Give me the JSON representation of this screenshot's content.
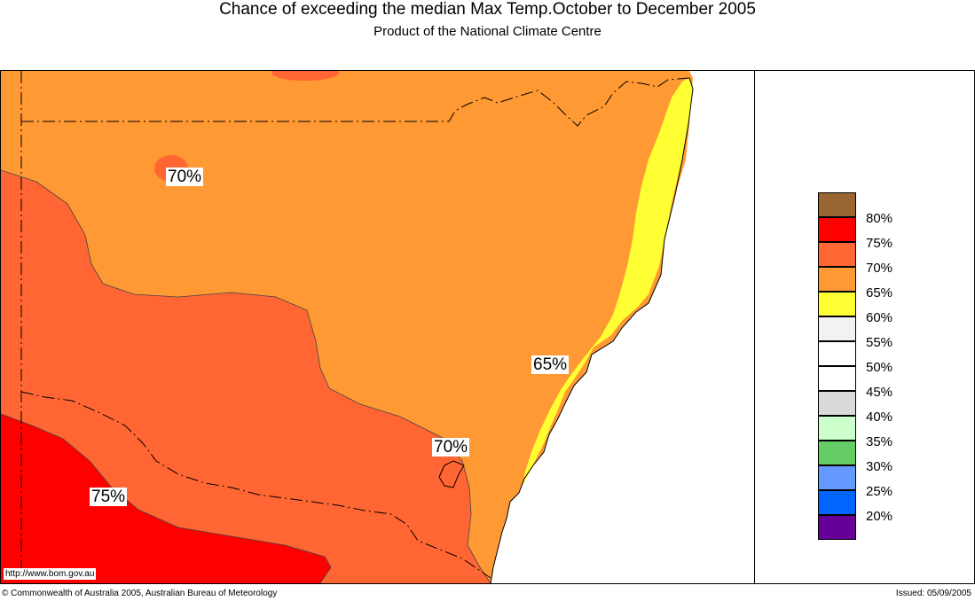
{
  "header": {
    "title": "Chance of exceeding the median Max Temp.October to December 2005",
    "subtitle": "Product of the National Climate Centre"
  },
  "map": {
    "labels": [
      "70%",
      "65%",
      "70%",
      "75%"
    ],
    "url": "http://www.bom.gov.au",
    "colors": {
      "p65": "#ff9933",
      "p70": "#ff6633",
      "p75": "#ff0000",
      "p60": "#ffff33",
      "sea": "#ffffff"
    }
  },
  "legend": {
    "labels": [
      "80%",
      "75%",
      "70%",
      "65%",
      "60%",
      "55%",
      "50%",
      "45%",
      "40%",
      "35%",
      "30%",
      "25%",
      "20%"
    ],
    "colors": [
      "#996633",
      "#ff0000",
      "#ff6633",
      "#ff9933",
      "#ffff33",
      "#f2f2f2",
      "#ffffff",
      "#ffffff",
      "#d9d9d9",
      "#ccffcc",
      "#66cc66",
      "#6699ff",
      "#0066ff",
      "#660099"
    ]
  },
  "footer": {
    "copyright": "© Commonwealth of Australia 2005, Australian Bureau of Meteorology",
    "issued": "Issued: 05/09/2005"
  }
}
